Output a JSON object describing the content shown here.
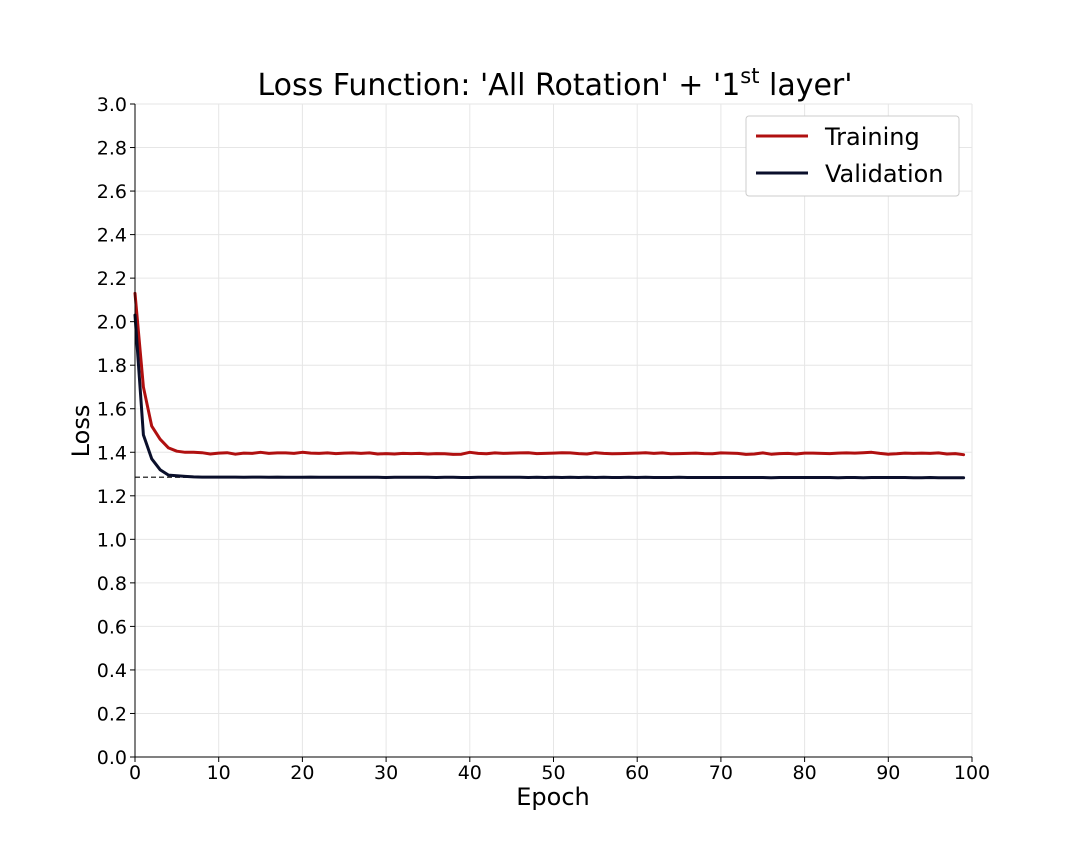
{
  "chart_data": {
    "type": "line",
    "title_parts": {
      "prefix": "Loss Function: 'All Rotation' + '1",
      "superscript": "st",
      "suffix": " layer'"
    },
    "xlabel": "Epoch",
    "ylabel": "Loss",
    "xlim": [
      0,
      100
    ],
    "ylim": [
      0,
      3.0
    ],
    "x_ticks": [
      "0",
      "10",
      "20",
      "30",
      "40",
      "50",
      "60",
      "70",
      "80",
      "90",
      "100"
    ],
    "y_ticks": [
      "0.0",
      "0.2",
      "0.4",
      "0.6",
      "0.8",
      "1.0",
      "1.2",
      "1.4",
      "1.6",
      "1.8",
      "2.0",
      "2.2",
      "2.4",
      "2.6",
      "2.8",
      "3.0"
    ],
    "grid": true,
    "legend_position": "top-right",
    "reference_line": {
      "y": 1.285,
      "style": "dashed",
      "color": "#444444"
    },
    "series": [
      {
        "name": "Training",
        "color": "#b01010",
        "x": [
          0,
          1,
          2,
          3,
          4,
          5,
          6,
          7,
          8,
          9,
          10,
          11,
          12,
          13,
          14,
          15,
          16,
          17,
          18,
          19,
          20,
          21,
          22,
          23,
          24,
          25,
          26,
          27,
          28,
          29,
          30,
          31,
          32,
          33,
          34,
          35,
          36,
          37,
          38,
          39,
          40,
          41,
          42,
          43,
          44,
          45,
          46,
          47,
          48,
          49,
          50,
          51,
          52,
          53,
          54,
          55,
          56,
          57,
          58,
          59,
          60,
          61,
          62,
          63,
          64,
          65,
          66,
          67,
          68,
          69,
          70,
          71,
          72,
          73,
          74,
          75,
          76,
          77,
          78,
          79,
          80,
          81,
          82,
          83,
          84,
          85,
          86,
          87,
          88,
          89,
          90,
          91,
          92,
          93,
          94,
          95,
          96,
          97,
          98,
          99
        ],
        "values": [
          2.13,
          1.7,
          1.52,
          1.46,
          1.42,
          1.405,
          1.4,
          1.4,
          1.398,
          1.392,
          1.396,
          1.398,
          1.391,
          1.396,
          1.395,
          1.4,
          1.395,
          1.397,
          1.397,
          1.395,
          1.4,
          1.396,
          1.395,
          1.397,
          1.394,
          1.396,
          1.397,
          1.395,
          1.397,
          1.392,
          1.394,
          1.392,
          1.395,
          1.394,
          1.395,
          1.392,
          1.394,
          1.393,
          1.39,
          1.391,
          1.4,
          1.395,
          1.393,
          1.397,
          1.395,
          1.396,
          1.397,
          1.398,
          1.394,
          1.395,
          1.396,
          1.398,
          1.397,
          1.394,
          1.392,
          1.398,
          1.395,
          1.393,
          1.394,
          1.395,
          1.396,
          1.398,
          1.395,
          1.397,
          1.393,
          1.394,
          1.395,
          1.396,
          1.394,
          1.393,
          1.397,
          1.396,
          1.395,
          1.39,
          1.392,
          1.397,
          1.391,
          1.394,
          1.395,
          1.392,
          1.396,
          1.396,
          1.395,
          1.394,
          1.396,
          1.397,
          1.396,
          1.398,
          1.4,
          1.395,
          1.391,
          1.393,
          1.396,
          1.395,
          1.396,
          1.395,
          1.397,
          1.392,
          1.394,
          1.389
        ]
      },
      {
        "name": "Validation",
        "color": "#0a0f2b",
        "x": [
          0,
          1,
          2,
          3,
          4,
          5,
          6,
          7,
          8,
          9,
          10,
          11,
          12,
          13,
          14,
          15,
          16,
          17,
          18,
          19,
          20,
          21,
          22,
          23,
          24,
          25,
          26,
          27,
          28,
          29,
          30,
          31,
          32,
          33,
          34,
          35,
          36,
          37,
          38,
          39,
          40,
          41,
          42,
          43,
          44,
          45,
          46,
          47,
          48,
          49,
          50,
          51,
          52,
          53,
          54,
          55,
          56,
          57,
          58,
          59,
          60,
          61,
          62,
          63,
          64,
          65,
          66,
          67,
          68,
          69,
          70,
          71,
          72,
          73,
          74,
          75,
          76,
          77,
          78,
          79,
          80,
          81,
          82,
          83,
          84,
          85,
          86,
          87,
          88,
          89,
          90,
          91,
          92,
          93,
          94,
          95,
          96,
          97,
          98,
          99
        ],
        "values": [
          2.03,
          1.48,
          1.37,
          1.32,
          1.295,
          1.292,
          1.289,
          1.287,
          1.286,
          1.286,
          1.286,
          1.286,
          1.286,
          1.285,
          1.286,
          1.286,
          1.285,
          1.286,
          1.285,
          1.285,
          1.285,
          1.286,
          1.285,
          1.285,
          1.285,
          1.285,
          1.285,
          1.285,
          1.285,
          1.285,
          1.284,
          1.285,
          1.285,
          1.285,
          1.285,
          1.285,
          1.284,
          1.285,
          1.285,
          1.284,
          1.284,
          1.285,
          1.285,
          1.285,
          1.285,
          1.285,
          1.285,
          1.284,
          1.285,
          1.284,
          1.285,
          1.284,
          1.285,
          1.284,
          1.285,
          1.284,
          1.285,
          1.284,
          1.284,
          1.285,
          1.284,
          1.285,
          1.284,
          1.284,
          1.284,
          1.285,
          1.284,
          1.284,
          1.284,
          1.284,
          1.284,
          1.284,
          1.284,
          1.284,
          1.284,
          1.284,
          1.283,
          1.284,
          1.284,
          1.284,
          1.284,
          1.284,
          1.284,
          1.284,
          1.283,
          1.284,
          1.284,
          1.283,
          1.284,
          1.284,
          1.284,
          1.284,
          1.284,
          1.283,
          1.283,
          1.284,
          1.283,
          1.283,
          1.283,
          1.283
        ]
      }
    ]
  }
}
